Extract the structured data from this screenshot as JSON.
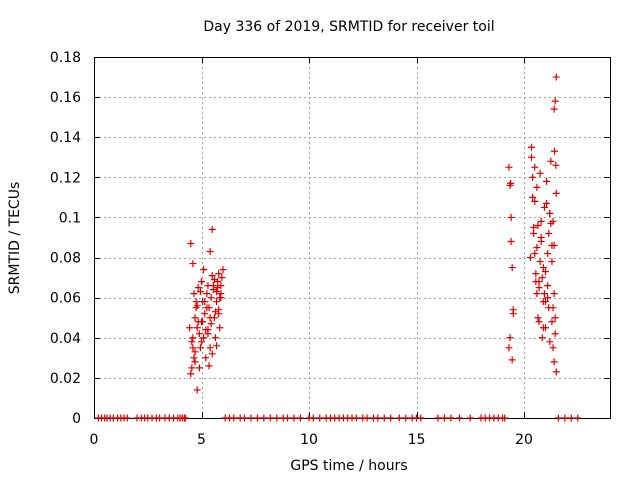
{
  "chart_data": {
    "type": "scatter",
    "title": "Day 336 of 2019, SRMTID for receiver toil",
    "xlabel": "GPS time / hours",
    "ylabel": "SRMTID / TECUs",
    "xlim": [
      0,
      24
    ],
    "ylim": [
      0,
      0.18
    ],
    "xticks": [
      0,
      5,
      10,
      15,
      20
    ],
    "xtick_labels": [
      "0",
      "5",
      "10",
      "15",
      "20"
    ],
    "yticks": [
      0,
      0.02,
      0.04,
      0.06,
      0.08,
      0.1,
      0.12,
      0.14,
      0.16,
      0.18
    ],
    "ytick_labels": [
      "0",
      "0.02",
      "0.04",
      "0.06",
      "0.08",
      "0.1",
      "0.12",
      "0.14",
      "0.16",
      "0.18"
    ],
    "grid": true,
    "marker": "+",
    "series": [
      {
        "name": "SRMTID",
        "color": "#e00000",
        "x": [
          0.2,
          0.35,
          0.5,
          0.6,
          0.75,
          0.9,
          1.1,
          1.25,
          1.4,
          1.55,
          2.0,
          2.2,
          2.35,
          2.5,
          2.7,
          2.9,
          3.05,
          3.3,
          3.5,
          3.7,
          3.9,
          4.0,
          4.1,
          4.2,
          4.25,
          4.45,
          4.5,
          4.55,
          4.6,
          4.6,
          4.65,
          4.65,
          4.7,
          4.7,
          4.75,
          4.8,
          4.8,
          4.85,
          4.9,
          4.95,
          5.0,
          5.0,
          5.05,
          5.1,
          5.1,
          5.15,
          5.2,
          5.25,
          5.3,
          5.3,
          5.35,
          5.4,
          5.4,
          5.45,
          5.5,
          5.5,
          5.55,
          5.6,
          5.6,
          5.65,
          5.7,
          5.7,
          5.75,
          5.8,
          5.8,
          5.85,
          5.9,
          5.9,
          5.95,
          6.0,
          4.6,
          4.75,
          4.85,
          5.0,
          5.2,
          5.35,
          5.5,
          5.7,
          5.85,
          4.7,
          4.95,
          5.25,
          5.45,
          5.65,
          5.9,
          4.5,
          4.8,
          5.05,
          5.3,
          5.55,
          5.8,
          4.55,
          4.9,
          5.15,
          5.4,
          5.75,
          6.1,
          6.3,
          6.5,
          6.8,
          7.0,
          7.3,
          7.6,
          7.9,
          8.2,
          8.5,
          8.8,
          9.0,
          9.3,
          9.6,
          10.0,
          10.2,
          10.5,
          10.8,
          11.0,
          11.2,
          11.4,
          11.6,
          11.8,
          12.0,
          12.2,
          12.5,
          12.7,
          13.0,
          13.2,
          13.5,
          13.8,
          14.2,
          14.5,
          14.8,
          15.0,
          15.2,
          16.0,
          16.3,
          16.6,
          17.0,
          17.5,
          18.0,
          18.2,
          18.4,
          18.6,
          18.8,
          19.0,
          19.1,
          19.3,
          19.35,
          19.4,
          19.45,
          19.5,
          19.35,
          19.45,
          19.4,
          19.3,
          19.5,
          19.38,
          20.3,
          20.35,
          20.4,
          20.45,
          20.5,
          20.55,
          20.6,
          20.65,
          20.7,
          20.75,
          20.8,
          20.85,
          20.9,
          20.95,
          21.0,
          21.05,
          21.1,
          21.15,
          21.2,
          21.25,
          21.3,
          21.35,
          21.4,
          21.45,
          21.5,
          20.4,
          20.5,
          20.6,
          20.7,
          20.8,
          20.9,
          21.0,
          21.1,
          21.2,
          21.3,
          21.4,
          20.45,
          20.55,
          20.65,
          20.75,
          20.85,
          20.95,
          21.05,
          21.15,
          21.25,
          21.35,
          21.45,
          20.35,
          20.6,
          20.8,
          21.0,
          21.2,
          21.4,
          20.5,
          20.7,
          20.9,
          21.1,
          21.3,
          21.5,
          21.5,
          21.45,
          21.4,
          21.42,
          21.48,
          21.35,
          21.6,
          21.9,
          22.2,
          22.5
        ],
        "y": [
          0,
          0,
          0,
          0,
          0,
          0,
          0,
          0,
          0,
          0,
          0,
          0,
          0,
          0,
          0,
          0,
          0,
          0,
          0,
          0,
          0,
          0,
          0,
          0,
          0,
          0.045,
          0.087,
          0.025,
          0.077,
          0.04,
          0.062,
          0.03,
          0.05,
          0.033,
          0.055,
          0.014,
          0.045,
          0.065,
          0.025,
          0.035,
          0.048,
          0.068,
          0.058,
          0.04,
          0.074,
          0.052,
          0.03,
          0.062,
          0.066,
          0.044,
          0.055,
          0.035,
          0.083,
          0.06,
          0.094,
          0.071,
          0.064,
          0.05,
          0.069,
          0.04,
          0.063,
          0.058,
          0.068,
          0.072,
          0.052,
          0.045,
          0.06,
          0.066,
          0.07,
          0.074,
          0.035,
          0.058,
          0.048,
          0.038,
          0.044,
          0.026,
          0.032,
          0.036,
          0.06,
          0.028,
          0.063,
          0.055,
          0.047,
          0.053,
          0.062,
          0.022,
          0.056,
          0.048,
          0.042,
          0.066,
          0.054,
          0.038,
          0.042,
          0.058,
          0.05,
          0.065,
          0,
          0,
          0,
          0,
          0,
          0,
          0,
          0,
          0,
          0,
          0,
          0,
          0,
          0,
          0,
          0,
          0,
          0,
          0,
          0,
          0,
          0,
          0,
          0,
          0,
          0,
          0,
          0,
          0,
          0,
          0,
          0,
          0,
          0,
          0,
          0,
          0,
          0,
          0,
          0,
          0,
          0,
          0,
          0,
          0,
          0,
          0,
          0,
          0.125,
          0.116,
          0.1,
          0.075,
          0.054,
          0.04,
          0.029,
          0.088,
          0.035,
          0.052,
          0.117,
          0.08,
          0.135,
          0.12,
          0.092,
          0.108,
          0.072,
          0.062,
          0.096,
          0.048,
          0.122,
          0.088,
          0.07,
          0.058,
          0.105,
          0.045,
          0.118,
          0.066,
          0.092,
          0.038,
          0.128,
          0.078,
          0.055,
          0.086,
          0.042,
          0.112,
          0.11,
          0.125,
          0.085,
          0.065,
          0.098,
          0.075,
          0.058,
          0.082,
          0.102,
          0.048,
          0.062,
          0.095,
          0.068,
          0.05,
          0.078,
          0.04,
          0.062,
          0.107,
          0.055,
          0.097,
          0.035,
          0.05,
          0.13,
          0.115,
          0.09,
          0.073,
          0.102,
          0.028,
          0.082,
          0.068,
          0.045,
          0.06,
          0.086,
          0.023,
          0.17,
          0.158,
          0.154,
          0.133,
          0.126,
          0.098,
          0,
          0,
          0,
          0
        ]
      }
    ]
  }
}
